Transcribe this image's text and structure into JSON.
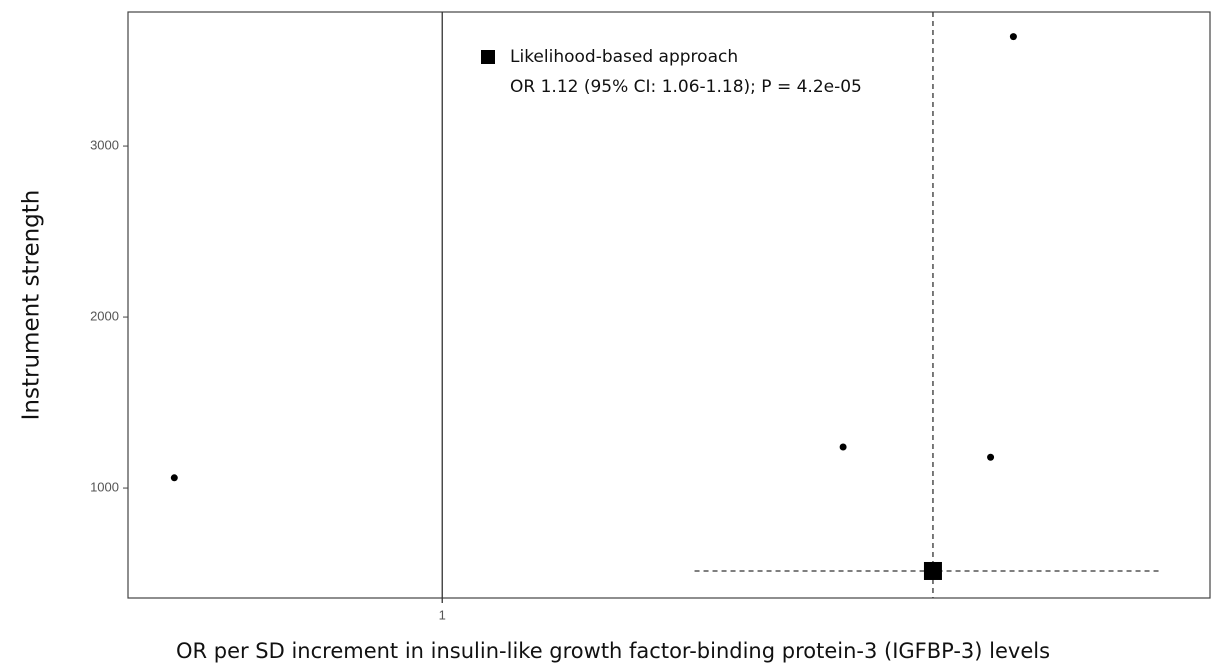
{
  "chart_data": {
    "type": "scatter",
    "x_label": "OR per SD increment in insulin-like growth factor-binding protein-3 (IGFBP-3) levels",
    "y_label": "Instrument strength",
    "x": [
      0.94,
      1.097,
      1.135,
      1.141
    ],
    "y": [
      1060,
      1240,
      1180,
      3640
    ],
    "color": "#000000",
    "log_x": true,
    "xlim": [
      0.93,
      1.194
    ],
    "ylim": [
      357,
      3784
    ],
    "xticks": [
      1
    ],
    "yticks": [
      1000,
      2000,
      3000
    ],
    "grid": false,
    "estimate": {
      "name": "Likelihood-based approach",
      "annotation": "OR 1.12 (95% CI: 1.06-1.18); P = 4.2e-05",
      "x": 1.12,
      "y": 515,
      "ci_low": 1.06,
      "ci_high": 1.18
    }
  }
}
